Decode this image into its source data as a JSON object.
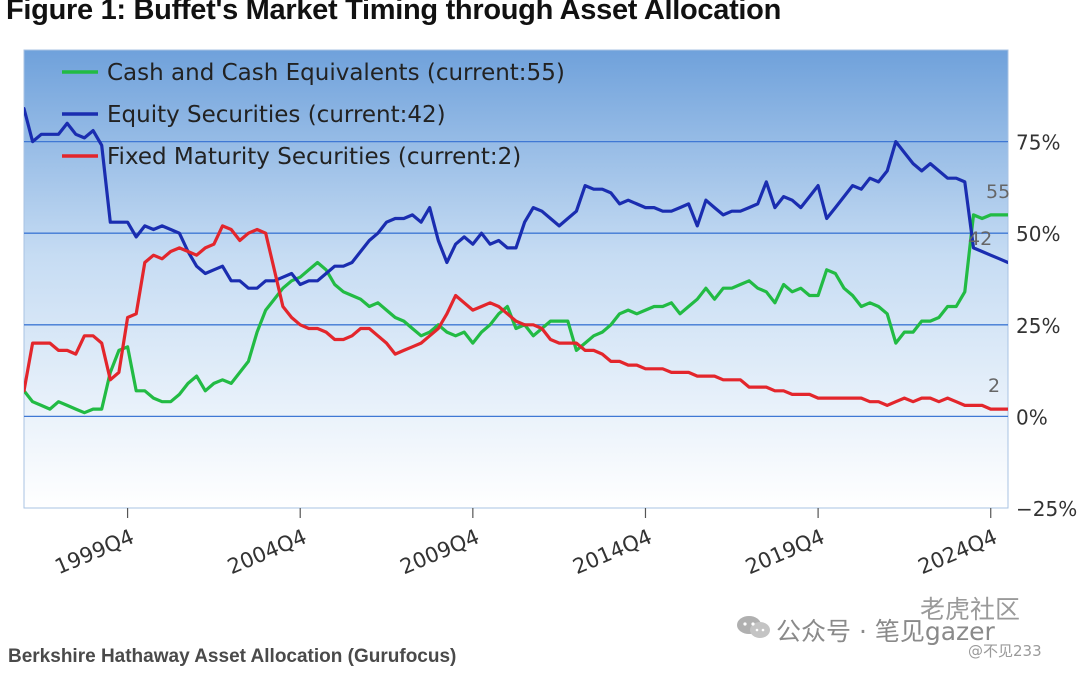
{
  "figure_title": "Figure 1: Buffet's Market Timing through Asset Allocation",
  "caption": "Berkshire Hathaway Asset Allocation (Gurufocus)",
  "watermarks": {
    "account": "公众号 · 笔见gazer",
    "site": "老虎社区",
    "user": "@不见233"
  },
  "chart_data": {
    "type": "line",
    "title": "Figure 1: Buffet's Market Timing through Asset Allocation",
    "xlabel": "",
    "ylabel": "",
    "x_range": [
      1996.75,
      2025.25
    ],
    "ylim": [
      -25,
      100
    ],
    "y_ticks": [
      -25,
      0,
      25,
      50,
      75
    ],
    "y_tick_labels": [
      "−25%",
      "0%",
      "25%",
      "50%",
      "75%"
    ],
    "x_ticks": [
      1999.75,
      2004.75,
      2009.75,
      2014.75,
      2019.75,
      2024.75
    ],
    "x_tick_labels": [
      "1999Q4",
      "2004Q4",
      "2009Q4",
      "2014Q4",
      "2019Q4",
      "2024Q4"
    ],
    "grid": true,
    "legend_position": "top-left",
    "end_labels": [
      "55",
      "42",
      "2"
    ],
    "series": [
      {
        "name": "Cash and Cash Equivalents (current:55)",
        "end_label": "55",
        "color": "#22bb44",
        "x": [
          1996.75,
          1997.0,
          1997.25,
          1997.5,
          1997.75,
          1998.0,
          1998.25,
          1998.5,
          1998.75,
          1999.0,
          1999.25,
          1999.5,
          1999.75,
          2000.0,
          2000.25,
          2000.5,
          2000.75,
          2001.0,
          2001.25,
          2001.5,
          2001.75,
          2002.0,
          2002.25,
          2002.5,
          2002.75,
          2003.0,
          2003.25,
          2003.5,
          2003.75,
          2004.0,
          2004.25,
          2004.5,
          2004.75,
          2005.0,
          2005.25,
          2005.5,
          2005.75,
          2006.0,
          2006.25,
          2006.5,
          2006.75,
          2007.0,
          2007.25,
          2007.5,
          2007.75,
          2008.0,
          2008.25,
          2008.5,
          2008.75,
          2009.0,
          2009.25,
          2009.5,
          2009.75,
          2010.0,
          2010.25,
          2010.5,
          2010.75,
          2011.0,
          2011.25,
          2011.5,
          2011.75,
          2012.0,
          2012.25,
          2012.5,
          2012.75,
          2013.0,
          2013.25,
          2013.5,
          2013.75,
          2014.0,
          2014.25,
          2014.5,
          2014.75,
          2015.0,
          2015.25,
          2015.5,
          2015.75,
          2016.0,
          2016.25,
          2016.5,
          2016.75,
          2017.0,
          2017.25,
          2017.5,
          2017.75,
          2018.0,
          2018.25,
          2018.5,
          2018.75,
          2019.0,
          2019.25,
          2019.5,
          2019.75,
          2020.0,
          2020.25,
          2020.5,
          2020.75,
          2021.0,
          2021.25,
          2021.5,
          2021.75,
          2022.0,
          2022.25,
          2022.5,
          2022.75,
          2023.0,
          2023.25,
          2023.5,
          2023.75,
          2024.0,
          2024.25,
          2024.5,
          2024.75,
          2025.0,
          2025.25
        ],
        "values": [
          7,
          4,
          3,
          2,
          4,
          3,
          2,
          1,
          2,
          2,
          12,
          18,
          19,
          7,
          7,
          5,
          4,
          4,
          6,
          9,
          11,
          7,
          9,
          10,
          9,
          12,
          15,
          23,
          29,
          32,
          35,
          37,
          38,
          40,
          42,
          40,
          36,
          34,
          33,
          32,
          30,
          31,
          29,
          27,
          26,
          24,
          22,
          23,
          25,
          23,
          22,
          23,
          20,
          23,
          25,
          28,
          30,
          24,
          25,
          22,
          24,
          26,
          26,
          26,
          18,
          20,
          22,
          23,
          25,
          28,
          29,
          28,
          29,
          30,
          30,
          31,
          28,
          30,
          32,
          35,
          32,
          35,
          35,
          36,
          37,
          35,
          34,
          31,
          36,
          34,
          35,
          33,
          33,
          40,
          39,
          35,
          33,
          30,
          31,
          30,
          28,
          20,
          23,
          23,
          26,
          26,
          27,
          30,
          30,
          34,
          55,
          54,
          55,
          55,
          55
        ]
      },
      {
        "name": "Equity Securities (current:42)",
        "end_label": "42",
        "color": "#1a2db0",
        "x": [
          1996.75,
          1997.0,
          1997.25,
          1997.5,
          1997.75,
          1998.0,
          1998.25,
          1998.5,
          1998.75,
          1999.0,
          1999.25,
          1999.5,
          1999.75,
          2000.0,
          2000.25,
          2000.5,
          2000.75,
          2001.0,
          2001.25,
          2001.5,
          2001.75,
          2002.0,
          2002.25,
          2002.5,
          2002.75,
          2003.0,
          2003.25,
          2003.5,
          2003.75,
          2004.0,
          2004.25,
          2004.5,
          2004.75,
          2005.0,
          2005.25,
          2005.5,
          2005.75,
          2006.0,
          2006.25,
          2006.5,
          2006.75,
          2007.0,
          2007.25,
          2007.5,
          2007.75,
          2008.0,
          2008.25,
          2008.5,
          2008.75,
          2009.0,
          2009.25,
          2009.5,
          2009.75,
          2010.0,
          2010.25,
          2010.5,
          2010.75,
          2011.0,
          2011.25,
          2011.5,
          2011.75,
          2012.0,
          2012.25,
          2012.5,
          2012.75,
          2013.0,
          2013.25,
          2013.5,
          2013.75,
          2014.0,
          2014.25,
          2014.5,
          2014.75,
          2015.0,
          2015.25,
          2015.5,
          2015.75,
          2016.0,
          2016.25,
          2016.5,
          2016.75,
          2017.0,
          2017.25,
          2017.5,
          2017.75,
          2018.0,
          2018.25,
          2018.5,
          2018.75,
          2019.0,
          2019.25,
          2019.5,
          2019.75,
          2020.0,
          2020.25,
          2020.5,
          2020.75,
          2021.0,
          2021.25,
          2021.5,
          2021.75,
          2022.0,
          2022.25,
          2022.5,
          2022.75,
          2023.0,
          2023.25,
          2023.5,
          2023.75,
          2024.0,
          2024.25,
          2024.5,
          2024.75,
          2025.0,
          2025.25
        ],
        "values": [
          84,
          75,
          77,
          77,
          77,
          80,
          77,
          76,
          78,
          74,
          53,
          53,
          53,
          49,
          52,
          51,
          52,
          51,
          50,
          45,
          41,
          39,
          40,
          41,
          37,
          37,
          35,
          35,
          37,
          37,
          38,
          39,
          36,
          37,
          37,
          39,
          41,
          41,
          42,
          45,
          48,
          50,
          53,
          54,
          54,
          55,
          53,
          57,
          48,
          42,
          47,
          49,
          47,
          50,
          47,
          48,
          46,
          46,
          53,
          57,
          56,
          54,
          52,
          54,
          56,
          63,
          62,
          62,
          61,
          58,
          59,
          58,
          57,
          57,
          56,
          56,
          57,
          58,
          52,
          59,
          57,
          55,
          56,
          56,
          57,
          58,
          64,
          57,
          60,
          59,
          57,
          60,
          63,
          54,
          57,
          60,
          63,
          62,
          65,
          64,
          67,
          75,
          72,
          69,
          67,
          69,
          67,
          65,
          65,
          64,
          46,
          45,
          44,
          43,
          42
        ]
      },
      {
        "name": "Fixed Maturity Securities (current:2)",
        "end_label": "2",
        "color": "#e3262c",
        "x": [
          1996.75,
          1997.0,
          1997.25,
          1997.5,
          1997.75,
          1998.0,
          1998.25,
          1998.5,
          1998.75,
          1999.0,
          1999.25,
          1999.5,
          1999.75,
          2000.0,
          2000.25,
          2000.5,
          2000.75,
          2001.0,
          2001.25,
          2001.5,
          2001.75,
          2002.0,
          2002.25,
          2002.5,
          2002.75,
          2003.0,
          2003.25,
          2003.5,
          2003.75,
          2004.0,
          2004.25,
          2004.5,
          2004.75,
          2005.0,
          2005.25,
          2005.5,
          2005.75,
          2006.0,
          2006.25,
          2006.5,
          2006.75,
          2007.0,
          2007.25,
          2007.5,
          2007.75,
          2008.0,
          2008.25,
          2008.5,
          2008.75,
          2009.0,
          2009.25,
          2009.5,
          2009.75,
          2010.0,
          2010.25,
          2010.5,
          2010.75,
          2011.0,
          2011.25,
          2011.5,
          2011.75,
          2012.0,
          2012.25,
          2012.5,
          2012.75,
          2013.0,
          2013.25,
          2013.5,
          2013.75,
          2014.0,
          2014.25,
          2014.5,
          2014.75,
          2015.0,
          2015.25,
          2015.5,
          2015.75,
          2016.0,
          2016.25,
          2016.5,
          2016.75,
          2017.0,
          2017.25,
          2017.5,
          2017.75,
          2018.0,
          2018.25,
          2018.5,
          2018.75,
          2019.0,
          2019.25,
          2019.5,
          2019.75,
          2020.0,
          2020.25,
          2020.5,
          2020.75,
          2021.0,
          2021.25,
          2021.5,
          2021.75,
          2022.0,
          2022.25,
          2022.5,
          2022.75,
          2023.0,
          2023.25,
          2023.5,
          2023.75,
          2024.0,
          2024.25,
          2024.5,
          2024.75,
          2025.0,
          2025.25
        ],
        "values": [
          7,
          20,
          20,
          20,
          18,
          18,
          17,
          22,
          22,
          20,
          10,
          12,
          27,
          28,
          42,
          44,
          43,
          45,
          46,
          45,
          44,
          46,
          47,
          52,
          51,
          48,
          50,
          51,
          50,
          40,
          30,
          27,
          25,
          24,
          24,
          23,
          21,
          21,
          22,
          24,
          24,
          22,
          20,
          17,
          18,
          19,
          20,
          22,
          24,
          28,
          33,
          31,
          29,
          30,
          31,
          30,
          28,
          26,
          25,
          25,
          24,
          21,
          20,
          20,
          20,
          18,
          18,
          17,
          15,
          15,
          14,
          14,
          13,
          13,
          13,
          12,
          12,
          12,
          11,
          11,
          11,
          10,
          10,
          10,
          8,
          8,
          8,
          7,
          7,
          6,
          6,
          6,
          5,
          5,
          5,
          5,
          5,
          5,
          4,
          4,
          3,
          4,
          5,
          4,
          5,
          5,
          4,
          5,
          4,
          3,
          3,
          3,
          2,
          2,
          2
        ]
      }
    ]
  }
}
